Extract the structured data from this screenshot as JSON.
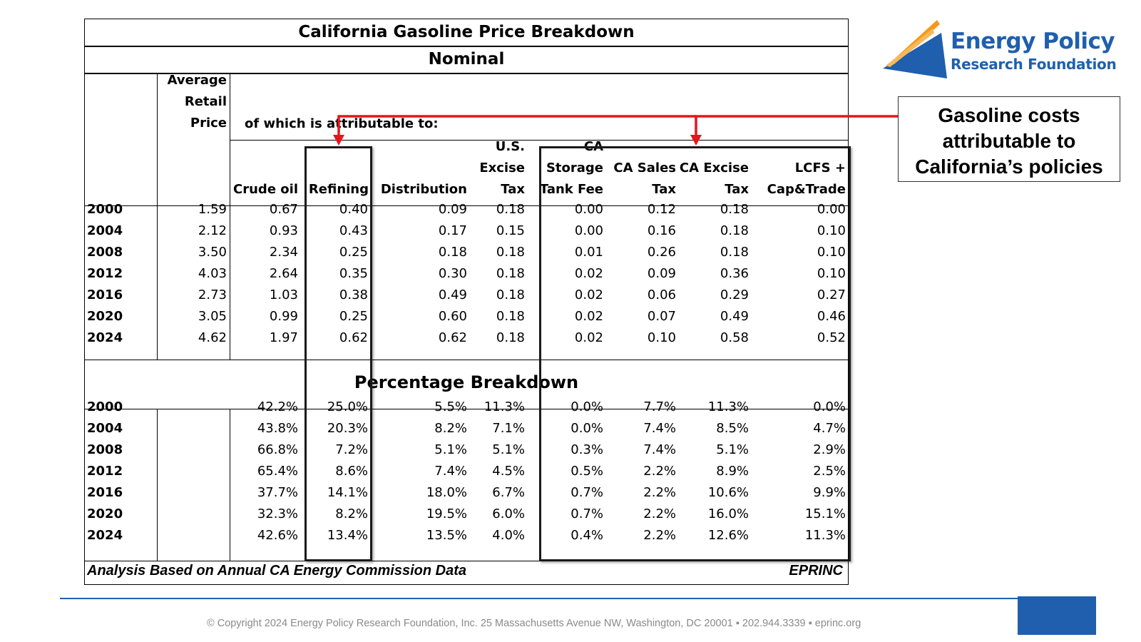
{
  "table": {
    "title": "California Gasoline Price Breakdown",
    "subtitle": "Nominal",
    "avg_price_header": [
      "Average",
      "Retail",
      "Price"
    ],
    "attributable_header": "of which is attributable to:",
    "columns": {
      "crude": [
        "Crude oil"
      ],
      "refining": [
        "Refining"
      ],
      "distribution": [
        "Distribution"
      ],
      "us_excise": [
        "U.S.",
        "Excise",
        "Tax"
      ],
      "ca_storage": [
        "CA",
        "Storage",
        "Tank Fee"
      ],
      "ca_sales": [
        "CA Sales",
        "Tax"
      ],
      "ca_excise": [
        "CA Excise",
        "Tax"
      ],
      "lcfs": [
        "LCFS +",
        "Cap&Trade"
      ]
    },
    "nominal_rows": [
      {
        "year": "2000",
        "avg": "1.59",
        "vals": [
          "0.67",
          "0.40",
          "0.09",
          "0.18",
          "0.00",
          "0.12",
          "0.18",
          "0.00"
        ]
      },
      {
        "year": "2004",
        "avg": "2.12",
        "vals": [
          "0.93",
          "0.43",
          "0.17",
          "0.15",
          "0.00",
          "0.16",
          "0.18",
          "0.10"
        ]
      },
      {
        "year": "2008",
        "avg": "3.50",
        "vals": [
          "2.34",
          "0.25",
          "0.18",
          "0.18",
          "0.01",
          "0.26",
          "0.18",
          "0.10"
        ]
      },
      {
        "year": "2012",
        "avg": "4.03",
        "vals": [
          "2.64",
          "0.35",
          "0.30",
          "0.18",
          "0.02",
          "0.09",
          "0.36",
          "0.10"
        ]
      },
      {
        "year": "2016",
        "avg": "2.73",
        "vals": [
          "1.03",
          "0.38",
          "0.49",
          "0.18",
          "0.02",
          "0.06",
          "0.29",
          "0.27"
        ]
      },
      {
        "year": "2020",
        "avg": "3.05",
        "vals": [
          "0.99",
          "0.25",
          "0.60",
          "0.18",
          "0.02",
          "0.07",
          "0.49",
          "0.46"
        ]
      },
      {
        "year": "2024",
        "avg": "4.62",
        "vals": [
          "1.97",
          "0.62",
          "0.62",
          "0.18",
          "0.02",
          "0.10",
          "0.58",
          "0.52"
        ]
      }
    ],
    "percentage_title": "Percentage Breakdown",
    "percentage_rows": [
      {
        "year": "2000",
        "vals": [
          "42.2%",
          "25.0%",
          "5.5%",
          "11.3%",
          "0.0%",
          "7.7%",
          "11.3%",
          "0.0%"
        ]
      },
      {
        "year": "2004",
        "vals": [
          "43.8%",
          "20.3%",
          "8.2%",
          "7.1%",
          "0.0%",
          "7.4%",
          "8.5%",
          "4.7%"
        ]
      },
      {
        "year": "2008",
        "vals": [
          "66.8%",
          "7.2%",
          "5.1%",
          "5.1%",
          "0.3%",
          "7.4%",
          "5.1%",
          "2.9%"
        ]
      },
      {
        "year": "2012",
        "vals": [
          "65.4%",
          "8.6%",
          "7.4%",
          "4.5%",
          "0.5%",
          "2.2%",
          "8.9%",
          "2.5%"
        ]
      },
      {
        "year": "2016",
        "vals": [
          "37.7%",
          "14.1%",
          "18.0%",
          "6.7%",
          "0.7%",
          "2.2%",
          "10.6%",
          "9.9%"
        ]
      },
      {
        "year": "2020",
        "vals": [
          "32.3%",
          "8.2%",
          "19.5%",
          "6.0%",
          "0.7%",
          "2.2%",
          "16.0%",
          "15.1%"
        ]
      },
      {
        "year": "2024",
        "vals": [
          "42.6%",
          "13.4%",
          "13.5%",
          "4.0%",
          "0.4%",
          "2.2%",
          "12.6%",
          "11.3%"
        ]
      }
    ],
    "footer_left": "Analysis Based on Annual CA Energy Commission Data",
    "footer_right": "EPRINC"
  },
  "callout": {
    "lines": [
      "Gasoline costs",
      "attributable to",
      "California’s policies"
    ],
    "arrow_color": "#e8141b"
  },
  "logo": {
    "name_line1": "Energy Policy",
    "name_line2": "Research Foundation",
    "brand_color": "#1f5fae",
    "accent_color": "#f39a1e"
  },
  "footer": {
    "copyright": "© Copyright 2024 Energy Policy Research Foundation, Inc. 25 Massachusetts Avenue NW, Washington, DC 20001 ▪ 202.944.3339 ▪ eprinc.org"
  }
}
